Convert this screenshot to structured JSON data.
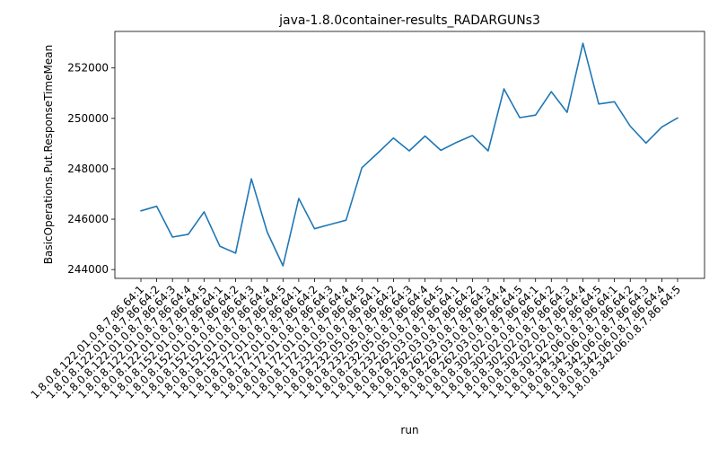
{
  "chart_data": {
    "type": "line",
    "title": "java-1.8.0container-results_RADARGUNs3",
    "xlabel": "run",
    "ylabel": "BasicOperations.Put.ResponseTimeMean",
    "color": "#1f77b4",
    "grid": false,
    "ylim": [
      243650,
      253450
    ],
    "yticks": [
      244000,
      246000,
      248000,
      250000,
      252000
    ],
    "ytick_labels": [
      "244000",
      "246000",
      "248000",
      "250000",
      "252000"
    ],
    "categories": [
      "1.8.0.8.122.01.0.8.7.86.64:1",
      "1.8.0.8.122.01.0.8.7.86.64:2",
      "1.8.0.8.122.01.0.8.7.86.64:3",
      "1.8.0.8.122.01.0.8.7.86.64:4",
      "1.8.0.8.122.01.0.8.7.86.64:5",
      "1.8.0.8.152.01.0.8.7.86.64:1",
      "1.8.0.8.152.01.0.8.7.86.64:2",
      "1.8.0.8.152.01.0.8.7.86.64:3",
      "1.8.0.8.152.01.0.8.7.86.64:4",
      "1.8.0.8.152.01.0.8.7.86.64:5",
      "1.8.0.8.172.01.0.8.7.86.64:1",
      "1.8.0.8.172.01.0.8.7.86.64:2",
      "1.8.0.8.172.01.0.8.7.86.64:3",
      "1.8.0.8.172.01.0.8.7.86.64:4",
      "1.8.0.8.172.01.0.8.7.86.64:5",
      "1.8.0.8.232.05.0.8.7.86.64:1",
      "1.8.0.8.232.05.0.8.7.86.64:2",
      "1.8.0.8.232.05.0.8.7.86.64:3",
      "1.8.0.8.232.05.0.8.7.86.64:4",
      "1.8.0.8.232.05.0.8.7.86.64:5",
      "1.8.0.8.262.03.0.8.7.86.64:1",
      "1.8.0.8.262.03.0.8.7.86.64:2",
      "1.8.0.8.262.03.0.8.7.86.64:3",
      "1.8.0.8.262.03.0.8.7.86.64:4",
      "1.8.0.8.262.03.0.8.7.86.64:5",
      "1.8.0.8.302.02.0.8.7.86.64:1",
      "1.8.0.8.302.02.0.8.7.86.64:2",
      "1.8.0.8.302.02.0.8.7.86.64:3",
      "1.8.0.8.302.02.0.8.7.86.64:4",
      "1.8.0.8.302.02.0.8.7.86.64:5",
      "1.8.0.8.342.06.0.8.7.86.64:1",
      "1.8.0.8.342.06.0.8.7.86.64:2",
      "1.8.0.8.342.06.0.8.7.86.64:3",
      "1.8.0.8.342.06.0.8.7.86.64:4",
      "1.8.0.8.342.06.0.8.7.86.64:5"
    ],
    "series": [
      {
        "values": [
          246330,
          246510,
          245290,
          245400,
          246290,
          244930,
          244650,
          247600,
          245490,
          244150,
          246820,
          245620,
          245790,
          245960,
          248040,
          248620,
          249220,
          248710,
          249300,
          248730,
          249050,
          249320,
          248710,
          251170,
          250030,
          250130,
          251060,
          250240,
          252980,
          250570,
          250660,
          249690,
          249020,
          249660,
          250020
        ]
      }
    ]
  }
}
